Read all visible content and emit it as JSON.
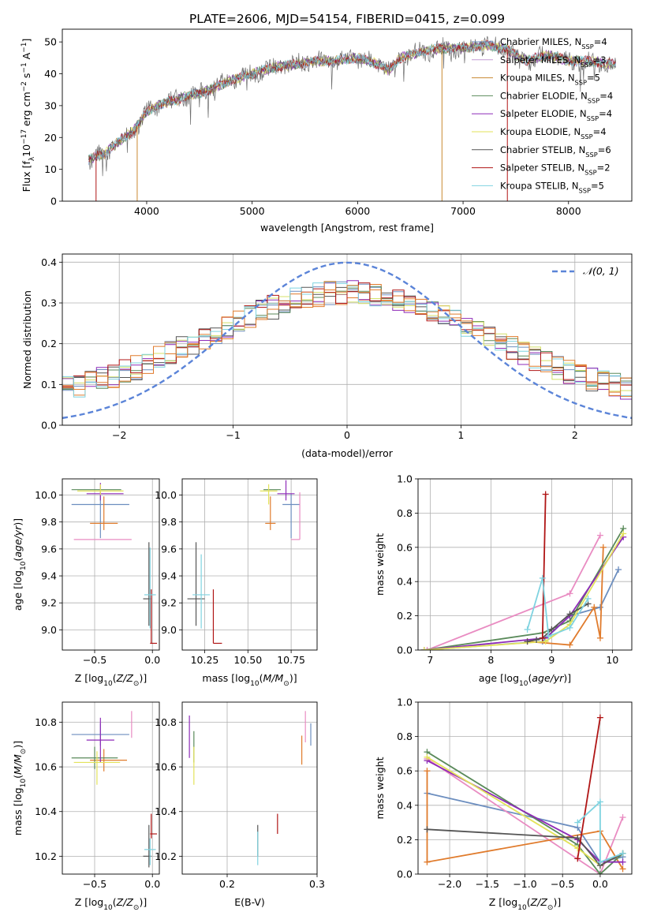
{
  "figure": {
    "title": "PLATE=2606, MJD=54154, FIBERID=0415, z=0.099"
  },
  "chart_data": [
    {
      "id": "spectrum",
      "type": "line",
      "xlabel": "wavelength [Angstrom, rest frame]",
      "ylabel": "Flux [f_λ 10^-17 erg cm^-2 s^-1 A^-1]",
      "xlim": [
        3200,
        8600
      ],
      "ylim": [
        0,
        54
      ],
      "xticks": [
        4000,
        5000,
        6000,
        7000,
        8000
      ],
      "yticks": [
        0,
        10,
        20,
        30,
        40,
        50
      ],
      "grid": false,
      "legend_placement": "top-right",
      "approx_continuum": [
        [
          3450,
          13
        ],
        [
          3600,
          15
        ],
        [
          3750,
          19
        ],
        [
          3900,
          23
        ],
        [
          4000,
          28
        ],
        [
          4100,
          30
        ],
        [
          4200,
          31
        ],
        [
          4300,
          32
        ],
        [
          4400,
          33
        ],
        [
          4600,
          35
        ],
        [
          4800,
          38
        ],
        [
          5000,
          40
        ],
        [
          5200,
          42
        ],
        [
          5400,
          43
        ],
        [
          5600,
          44
        ],
        [
          5800,
          44
        ],
        [
          6000,
          45
        ],
        [
          6200,
          43
        ],
        [
          6300,
          41
        ],
        [
          6400,
          45
        ],
        [
          6600,
          47
        ],
        [
          6800,
          48
        ],
        [
          7000,
          48
        ],
        [
          7200,
          49
        ],
        [
          7400,
          48
        ],
        [
          7600,
          44
        ],
        [
          7800,
          46
        ],
        [
          8000,
          44
        ],
        [
          8200,
          44
        ],
        [
          8400,
          43
        ]
      ],
      "series": [
        {
          "name": "Chabrier MILES, N_SSP=4",
          "color": "#6c8ebf"
        },
        {
          "name": "Salpeter MILES, N_SSP=3",
          "color": "#c39bd3"
        },
        {
          "name": "Kroupa MILES, N_SSP=5",
          "color": "#c98a32"
        },
        {
          "name": "Chabrier ELODIE, N_SSP=4",
          "color": "#5a8a5a"
        },
        {
          "name": "Salpeter ELODIE, N_SSP=4",
          "color": "#8e2bb8"
        },
        {
          "name": "Kroupa ELODIE, N_SSP=4",
          "color": "#e3e35a"
        },
        {
          "name": "Chabrier STELIB, N_SSP=6",
          "color": "#555555"
        },
        {
          "name": "Salpeter STELIB, N_SSP=2",
          "color": "#b01515"
        },
        {
          "name": "Kroupa STELIB, N_SSP=5",
          "color": "#7fd3e0"
        }
      ]
    },
    {
      "id": "residuals",
      "type": "line",
      "xlabel": "(data-model)/error",
      "ylabel": "Normed distribution",
      "xlim": [
        -2.5,
        2.5
      ],
      "ylim": [
        0,
        0.42
      ],
      "xticks": [
        -2,
        -1,
        0,
        1,
        2
      ],
      "yticks": [
        0.0,
        0.1,
        0.2,
        0.3,
        0.4
      ],
      "grid": true,
      "legend_placement": "top-right",
      "gaussian_label": "𝒩(0, 1)",
      "hist_colors": [
        "#6c8ebf",
        "#e07b2c",
        "#5a8a5a",
        "#8e2bb8",
        "#d4e06a",
        "#555555",
        "#b01515",
        "#7fd3e0",
        "#e07b2c"
      ]
    },
    {
      "id": "age-vs-Z",
      "type": "scatter",
      "xlabel": "Z [log10(Z/Z⊙)]",
      "ylabel": "age  [log10(age/yr)]",
      "xlim": [
        -0.78,
        0.06
      ],
      "ylim": [
        8.85,
        10.12
      ],
      "xticks": [
        -0.5,
        0.0
      ],
      "yticks": [
        9.0,
        9.2,
        9.4,
        9.6,
        9.8,
        10.0
      ],
      "grid": true,
      "points": [
        {
          "x": -0.45,
          "y": 9.93,
          "xerr": [
            0.25,
            0.25
          ],
          "yerr": [
            0.25,
            0.08
          ],
          "color": "#6c8ebf"
        },
        {
          "x": -0.43,
          "y": 9.67,
          "xerr": [
            0.25,
            0.25
          ],
          "yerr": [
            0,
            0
          ],
          "color": "#e98cc2"
        },
        {
          "x": -0.42,
          "y": 9.79,
          "xerr": [
            0.12,
            0.12
          ],
          "yerr": [
            0.05,
            0.2
          ],
          "color": "#e07b2c"
        },
        {
          "x": -0.45,
          "y": 10.04,
          "xerr": [
            0.25,
            0.18
          ],
          "yerr": [
            0,
            0
          ],
          "color": "#5a8a5a"
        },
        {
          "x": -0.45,
          "y": 10.01,
          "xerr": [
            0.12,
            0.2
          ],
          "yerr": [
            0.05,
            0.08
          ],
          "color": "#8e2bb8"
        },
        {
          "x": -0.45,
          "y": 10.03,
          "xerr": [
            0.2,
            0.2
          ],
          "yerr": [
            0.03,
            0.05
          ],
          "color": "#e3e35a"
        },
        {
          "x": -0.03,
          "y": 9.23,
          "xerr": [
            0.05,
            0.02
          ],
          "yerr": [
            0.2,
            0.42
          ],
          "color": "#555555"
        },
        {
          "x": -0.01,
          "y": 8.9,
          "xerr": [
            0.01,
            0.05
          ],
          "yerr": [
            0,
            0.4
          ],
          "color": "#b01515"
        },
        {
          "x": -0.02,
          "y": 9.26,
          "xerr": [
            0.05,
            0.05
          ],
          "yerr": [
            0.25,
            0.35
          ],
          "color": "#7fd3e0"
        }
      ]
    },
    {
      "id": "age-vs-mass",
      "type": "scatter",
      "xlabel": "mass [log10(M/M⊙)]",
      "ylabel": "",
      "xlim": [
        10.12,
        10.9
      ],
      "ylim": [
        8.85,
        10.12
      ],
      "xticks": [
        10.25,
        10.5,
        10.75
      ],
      "xtick_labels": [
        "10.25",
        "10.50",
        "10.75"
      ],
      "yticks": [
        9.0,
        9.2,
        9.4,
        9.6,
        9.8,
        10.0
      ],
      "grid": true,
      "points": [
        {
          "x": 10.75,
          "y": 9.93,
          "xerr": [
            0.05,
            0.05
          ],
          "yerr": [
            0.25,
            0.08
          ],
          "color": "#6c8ebf"
        },
        {
          "x": 10.8,
          "y": 9.67,
          "xerr": [
            0.05,
            0.0
          ],
          "yerr": [
            0,
            0.35
          ],
          "color": "#e98cc2"
        },
        {
          "x": 10.63,
          "y": 9.79,
          "xerr": [
            0.03,
            0.03
          ],
          "yerr": [
            0.05,
            0.2
          ],
          "color": "#e07b2c"
        },
        {
          "x": 10.64,
          "y": 10.04,
          "xerr": [
            0.05,
            0.05
          ],
          "yerr": [
            0,
            0
          ],
          "color": "#5a8a5a"
        },
        {
          "x": 10.72,
          "y": 10.01,
          "xerr": [
            0.05,
            0.05
          ],
          "yerr": [
            0.05,
            0.1
          ],
          "color": "#8e2bb8"
        },
        {
          "x": 10.62,
          "y": 10.03,
          "xerr": [
            0.05,
            0.05
          ],
          "yerr": [
            0.1,
            0.05
          ],
          "color": "#e3e35a"
        },
        {
          "x": 10.2,
          "y": 9.23,
          "xerr": [
            0.05,
            0.05
          ],
          "yerr": [
            0.2,
            0.42
          ],
          "color": "#555555"
        },
        {
          "x": 10.3,
          "y": 8.9,
          "xerr": [
            0,
            0.05
          ],
          "yerr": [
            0,
            0.4
          ],
          "color": "#b01515"
        },
        {
          "x": 10.23,
          "y": 9.26,
          "xerr": [
            0.05,
            0.05
          ],
          "yerr": [
            0.25,
            0.3
          ],
          "color": "#7fd3e0"
        }
      ]
    },
    {
      "id": "weight-vs-age",
      "type": "line",
      "xlabel": "age  [log10(age/yr)]",
      "ylabel": "mass weight",
      "xlim": [
        6.8,
        10.32
      ],
      "ylim": [
        0,
        1.0
      ],
      "xticks": [
        7,
        8,
        9,
        10
      ],
      "yticks": [
        0.0,
        0.2,
        0.4,
        0.6,
        0.8,
        1.0
      ],
      "grid": true,
      "series": [
        {
          "color": "#6c8ebf",
          "x": [
            6.9,
            8.85,
            9.3,
            9.8,
            10.1
          ],
          "y": [
            0.0,
            0.05,
            0.2,
            0.25,
            0.47
          ]
        },
        {
          "color": "#e98cc2",
          "x": [
            6.95,
            9.3,
            9.8
          ],
          "y": [
            0.0,
            0.33,
            0.67
          ]
        },
        {
          "color": "#e07b2c",
          "x": [
            8.6,
            9.3,
            9.7,
            9.8,
            9.85
          ],
          "y": [
            0.05,
            0.03,
            0.25,
            0.07,
            0.6
          ]
        },
        {
          "color": "#5a8a5a",
          "x": [
            6.9,
            8.85,
            9.3,
            10.18
          ],
          "y": [
            0.0,
            0.1,
            0.17,
            0.71
          ]
        },
        {
          "color": "#8e2bb8",
          "x": [
            6.9,
            8.9,
            9.3,
            10.18
          ],
          "y": [
            0.0,
            0.07,
            0.2,
            0.66
          ]
        },
        {
          "color": "#e3e35a",
          "x": [
            6.9,
            8.9,
            9.3,
            10.18
          ],
          "y": [
            0.0,
            0.05,
            0.15,
            0.68
          ]
        },
        {
          "color": "#555555",
          "x": [
            8.6,
            8.75,
            8.85,
            9.0,
            9.3,
            9.6
          ],
          "y": [
            0.05,
            0.06,
            0.07,
            0.12,
            0.21,
            0.27
          ]
        },
        {
          "color": "#b01515",
          "x": [
            8.85,
            8.9
          ],
          "y": [
            0.07,
            0.91
          ]
        },
        {
          "color": "#7fd3e0",
          "x": [
            8.6,
            8.85,
            8.95,
            9.3,
            9.6
          ],
          "y": [
            0.12,
            0.42,
            0.08,
            0.13,
            0.3
          ]
        }
      ]
    },
    {
      "id": "mass-vs-Z",
      "type": "scatter",
      "xlabel": "Z [log10(Z/Z⊙)]",
      "ylabel": "mass [log10(M/M⊙)]",
      "xlim": [
        -0.78,
        0.06
      ],
      "ylim": [
        10.12,
        10.89
      ],
      "xticks": [
        -0.5,
        0.0
      ],
      "yticks": [
        10.2,
        10.4,
        10.6,
        10.8
      ],
      "grid": true,
      "points": [
        {
          "x": -0.45,
          "y": 10.745,
          "xerr": [
            0.25,
            0.25
          ],
          "yerr": [
            0.05,
            0.05
          ],
          "color": "#6c8ebf"
        },
        {
          "x": -0.18,
          "y": 10.78,
          "xerr": [
            0,
            0
          ],
          "yerr": [
            0.05,
            0.07
          ],
          "color": "#e98cc2"
        },
        {
          "x": -0.42,
          "y": 10.63,
          "xerr": [
            0.12,
            0.2
          ],
          "yerr": [
            0.05,
            0.05
          ],
          "color": "#e07b2c"
        },
        {
          "x": -0.5,
          "y": 10.64,
          "xerr": [
            0.2,
            0.2
          ],
          "yerr": [
            0.05,
            0.05
          ],
          "color": "#5a8a5a"
        },
        {
          "x": -0.45,
          "y": 10.72,
          "xerr": [
            0.12,
            0.12
          ],
          "yerr": [
            0.1,
            0.1
          ],
          "color": "#8e2bb8"
        },
        {
          "x": -0.48,
          "y": 10.62,
          "xerr": [
            0.2,
            0.2
          ],
          "yerr": [
            0.1,
            0.05
          ],
          "color": "#e3e35a"
        },
        {
          "x": -0.03,
          "y": 10.2,
          "xerr": [
            0.05,
            0.02
          ],
          "yerr": [
            0.05,
            0.14
          ],
          "color": "#555555"
        },
        {
          "x": -0.01,
          "y": 10.3,
          "xerr": [
            0.01,
            0.05
          ],
          "yerr": [
            0.02,
            0.09
          ],
          "color": "#b01515"
        },
        {
          "x": -0.02,
          "y": 10.23,
          "xerr": [
            0.05,
            0.05
          ],
          "yerr": [
            0.07,
            0.05
          ],
          "color": "#7fd3e0"
        }
      ]
    },
    {
      "id": "mass-vs-EBV",
      "type": "scatter",
      "xlabel": "E(B-V)",
      "ylabel": "",
      "xlim": [
        0.15,
        0.3
      ],
      "ylim": [
        10.12,
        10.89
      ],
      "xticks": [
        0.2,
        0.3
      ],
      "yticks": [
        10.2,
        10.4,
        10.6,
        10.8
      ],
      "grid": true,
      "points": [
        {
          "x": 0.293,
          "y": 10.745,
          "xerr": [
            0,
            0
          ],
          "yerr": [
            0.05,
            0.05
          ],
          "color": "#6c8ebf"
        },
        {
          "x": 0.287,
          "y": 10.78,
          "xerr": [
            0,
            0
          ],
          "yerr": [
            0.07,
            0.07
          ],
          "color": "#e98cc2"
        },
        {
          "x": 0.283,
          "y": 10.66,
          "xerr": [
            0,
            0
          ],
          "yerr": [
            0.05,
            0.08
          ],
          "color": "#e07b2c"
        },
        {
          "x": 0.163,
          "y": 10.67,
          "xerr": [
            0,
            0
          ],
          "yerr": [
            0.05,
            0.09
          ],
          "color": "#5a8a5a"
        },
        {
          "x": 0.158,
          "y": 10.73,
          "xerr": [
            0,
            0
          ],
          "yerr": [
            0.09,
            0.1
          ],
          "color": "#8e2bb8"
        },
        {
          "x": 0.163,
          "y": 10.6,
          "xerr": [
            0,
            0
          ],
          "yerr": [
            0.08,
            0.09
          ],
          "color": "#e3e35a"
        },
        {
          "x": 0.234,
          "y": 10.25,
          "xerr": [
            0,
            0
          ],
          "yerr": [
            0.05,
            0.09
          ],
          "color": "#555555"
        },
        {
          "x": 0.256,
          "y": 10.32,
          "xerr": [
            0,
            0
          ],
          "yerr": [
            0.02,
            0.07
          ],
          "color": "#b01515"
        },
        {
          "x": 0.234,
          "y": 10.23,
          "xerr": [
            0,
            0
          ],
          "yerr": [
            0.07,
            0.08
          ],
          "color": "#7fd3e0"
        }
      ]
    },
    {
      "id": "weight-vs-Z",
      "type": "line",
      "xlabel": "Z [log10(Z/Z⊙)]",
      "ylabel": "mass weight",
      "xlim": [
        -2.42,
        0.42
      ],
      "ylim": [
        0,
        1.0
      ],
      "xticks": [
        -2.0,
        -1.5,
        -1.0,
        -0.5,
        0.0
      ],
      "yticks": [
        0.0,
        0.2,
        0.4,
        0.6,
        0.8,
        1.0
      ],
      "grid": true,
      "series": [
        {
          "color": "#6c8ebf",
          "x": [
            -2.3,
            -0.3,
            0.0,
            0.3
          ],
          "y": [
            0.47,
            0.27,
            0.07,
            0.1
          ]
        },
        {
          "color": "#e98cc2",
          "x": [
            -2.3,
            0.0,
            0.3
          ],
          "y": [
            0.67,
            0.0,
            0.33
          ]
        },
        {
          "color": "#e07b2c",
          "x": [
            -2.3,
            -2.3,
            0.0,
            0.3
          ],
          "y": [
            0.6,
            0.07,
            0.25,
            0.03
          ]
        },
        {
          "color": "#5a8a5a",
          "x": [
            -2.3,
            -0.3,
            0.0,
            0.3
          ],
          "y": [
            0.71,
            0.17,
            0.0,
            0.12
          ]
        },
        {
          "color": "#8e2bb8",
          "x": [
            -2.3,
            -0.3,
            0.0,
            0.3
          ],
          "y": [
            0.66,
            0.2,
            0.07,
            0.07
          ]
        },
        {
          "color": "#e3e35a",
          "x": [
            -2.3,
            -0.3,
            0.0,
            0.3
          ],
          "y": [
            0.68,
            0.15,
            0.05,
            0.12
          ]
        },
        {
          "color": "#555555",
          "x": [
            -2.3,
            -0.3,
            0.0,
            0.3
          ],
          "y": [
            0.26,
            0.21,
            0.05,
            0.12
          ]
        },
        {
          "color": "#b01515",
          "x": [
            -0.3,
            0.0
          ],
          "y": [
            0.09,
            0.91
          ]
        },
        {
          "color": "#7fd3e0",
          "x": [
            -0.3,
            0.0,
            0.0,
            0.3
          ],
          "y": [
            0.3,
            0.42,
            0.07,
            0.12
          ]
        }
      ]
    }
  ]
}
